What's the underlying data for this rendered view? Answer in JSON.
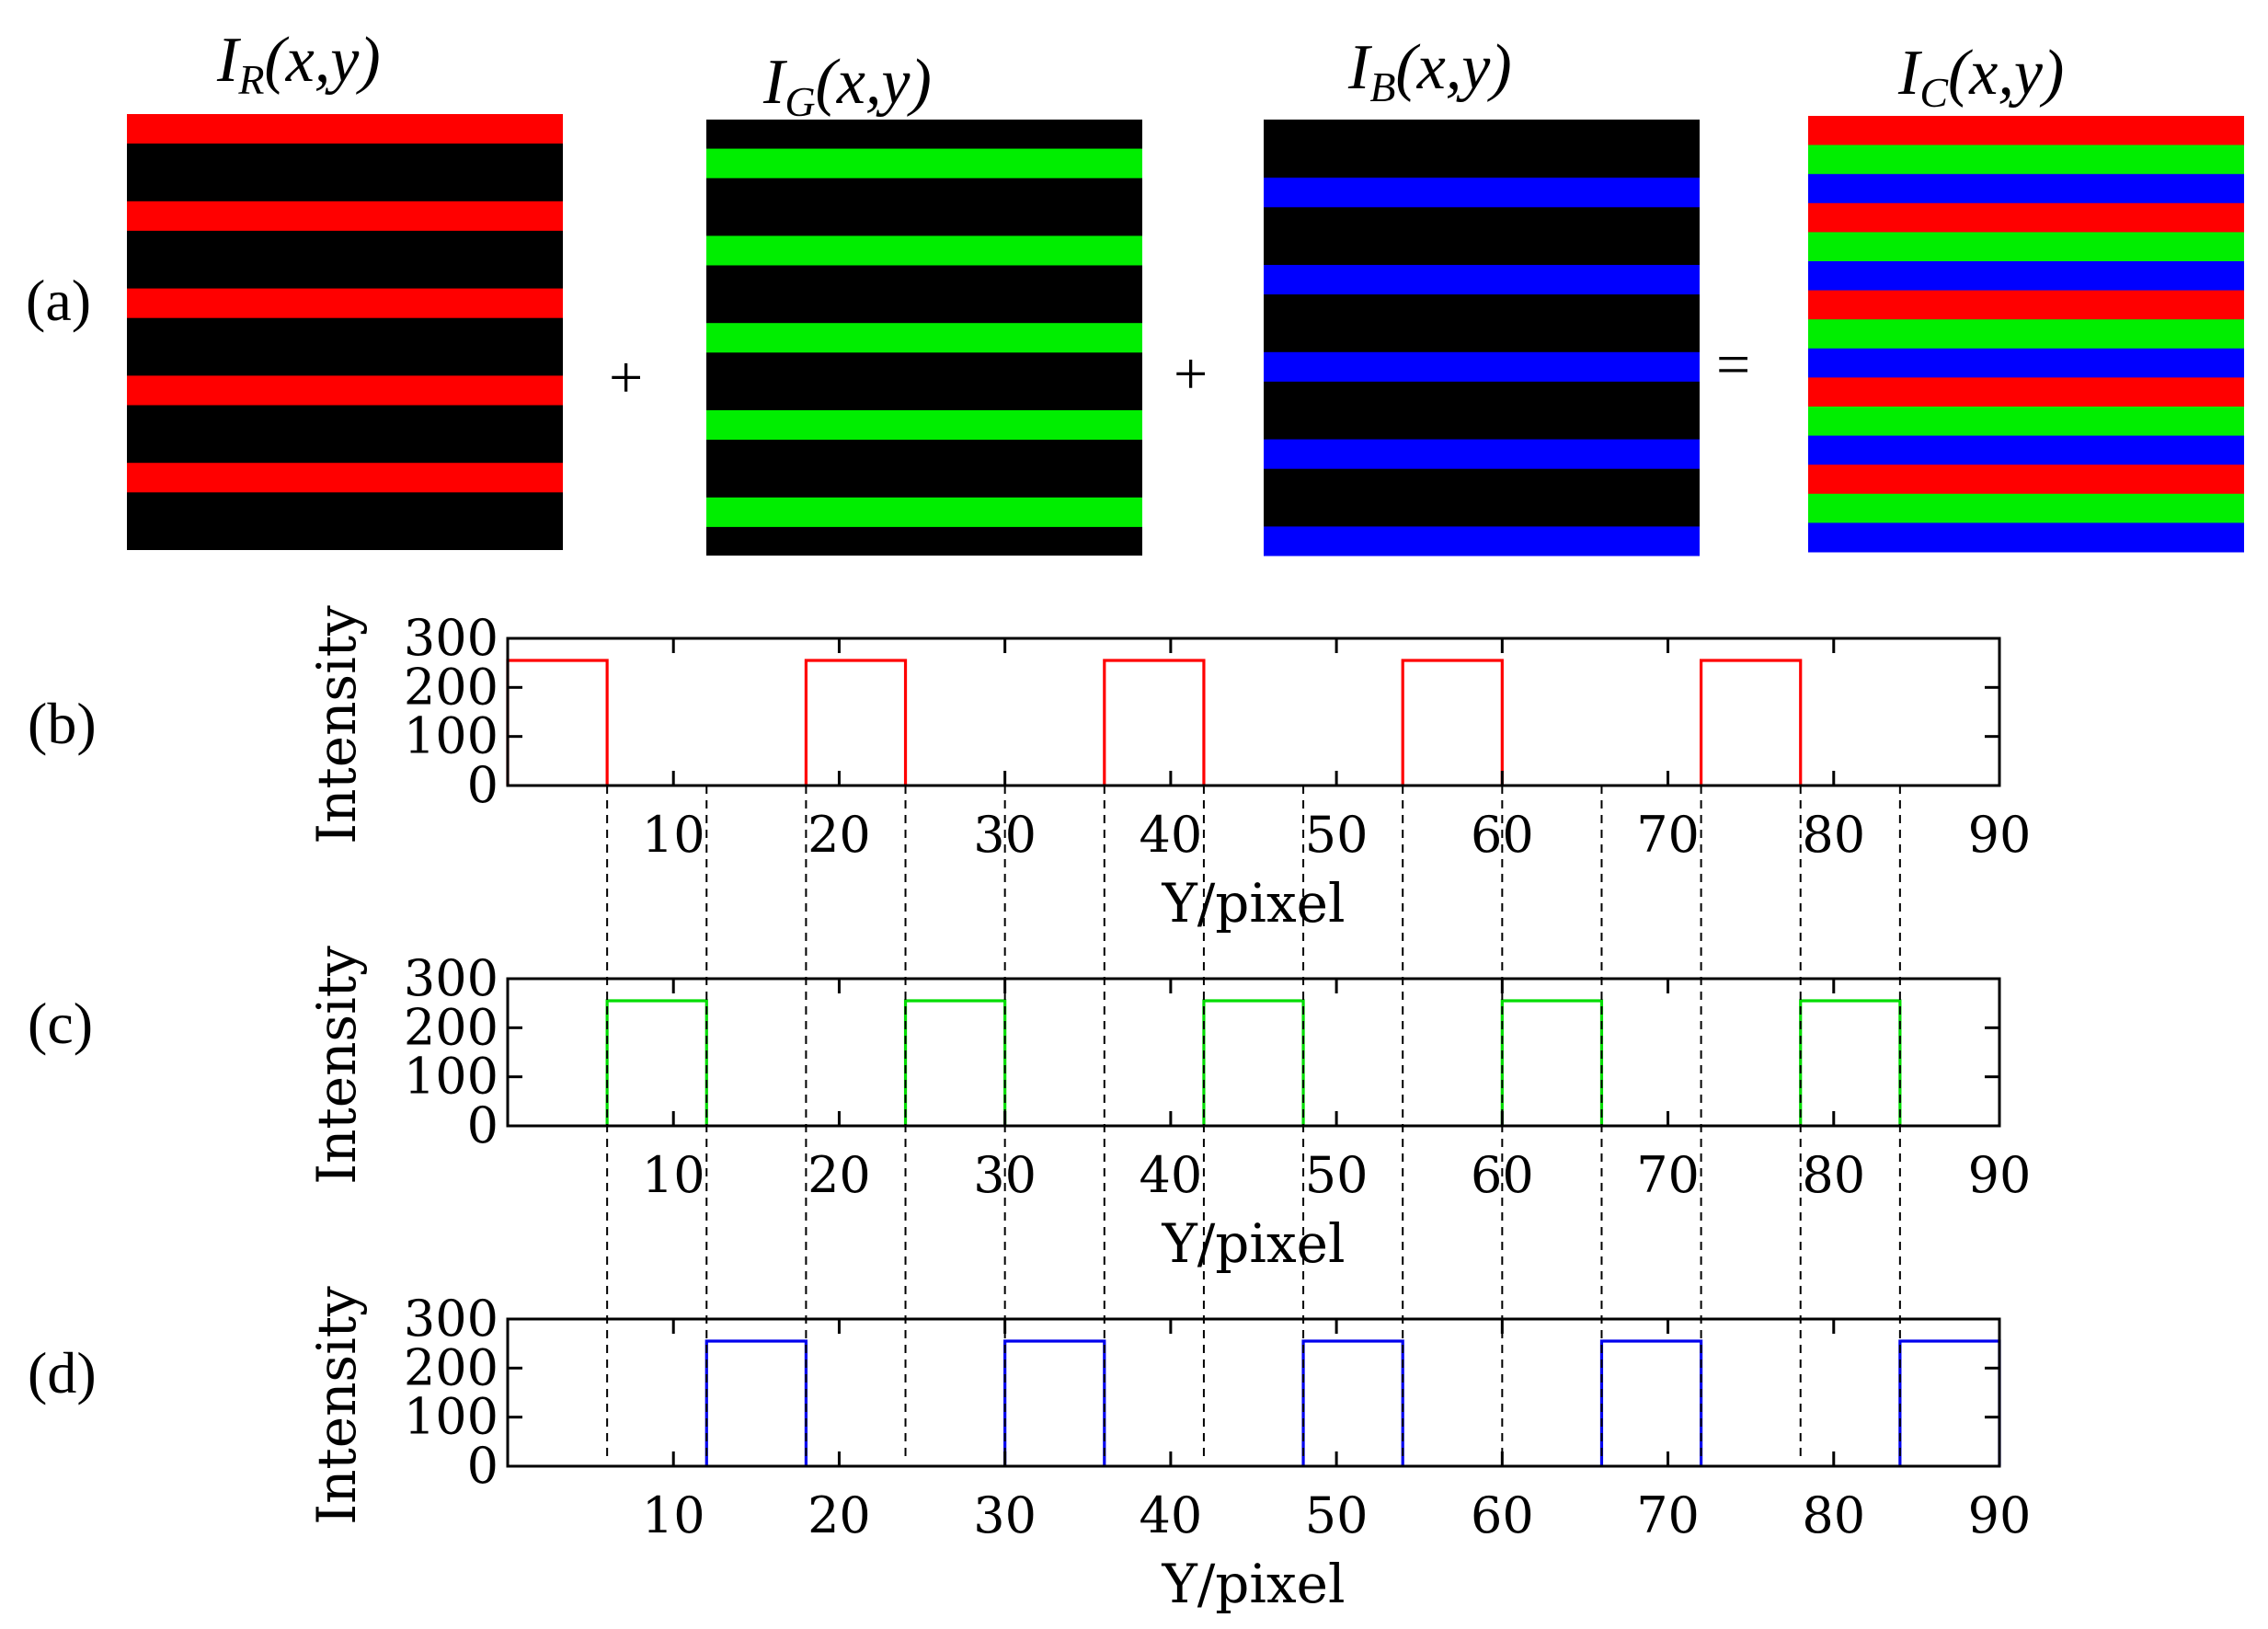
{
  "panel_labels": [
    "(a)",
    "(b)",
    "(c)",
    "(d)"
  ],
  "operators": {
    "plus": "+",
    "equals": "="
  },
  "images": [
    {
      "symbol": "I",
      "subscript": "R",
      "args": "(x,y)",
      "stripes": [
        "red"
      ]
    },
    {
      "symbol": "I",
      "subscript": "G",
      "args": "(x,y)",
      "stripes": [
        "green"
      ]
    },
    {
      "symbol": "I",
      "subscript": "B",
      "args": "(x,y)",
      "stripes": [
        "blue"
      ]
    },
    {
      "symbol": "I",
      "subscript": "C",
      "args": "(x,y)",
      "stripes": [
        "red",
        "green",
        "blue"
      ]
    }
  ],
  "colors": {
    "red": "#ff0000",
    "green": "#00ee00",
    "blue": "#0000ff",
    "black": "#000000",
    "line_red": "#ff0000",
    "line_green": "#00dd00",
    "line_blue": "#0000ee",
    "axis": "#000000"
  },
  "chart_data": [
    {
      "type": "line",
      "panel": "(b)",
      "series": [
        {
          "name": "red channel",
          "color": "line_red",
          "pulses": [
            [
              0,
              6
            ],
            [
              18,
              24
            ],
            [
              36,
              42
            ],
            [
              54,
              60
            ],
            [
              72,
              78
            ]
          ],
          "high": 255
        }
      ],
      "xlim": [
        0,
        90
      ],
      "ylim": [
        0,
        300
      ],
      "xticks": [
        10,
        20,
        30,
        40,
        50,
        60,
        70,
        80,
        90
      ],
      "yticks": [
        0,
        100,
        200,
        300
      ],
      "xlabel": "Y/pixel",
      "ylabel": "Intensity"
    },
    {
      "type": "line",
      "panel": "(c)",
      "series": [
        {
          "name": "green channel",
          "color": "line_green",
          "pulses": [
            [
              6,
              12
            ],
            [
              24,
              30
            ],
            [
              42,
              48
            ],
            [
              60,
              66
            ],
            [
              78,
              84
            ]
          ],
          "high": 255
        }
      ],
      "xlim": [
        0,
        90
      ],
      "ylim": [
        0,
        300
      ],
      "xticks": [
        10,
        20,
        30,
        40,
        50,
        60,
        70,
        80,
        90
      ],
      "yticks": [
        0,
        100,
        200,
        300
      ],
      "xlabel": "Y/pixel",
      "ylabel": "Intensity"
    },
    {
      "type": "line",
      "panel": "(d)",
      "series": [
        {
          "name": "blue channel",
          "color": "line_blue",
          "pulses": [
            [
              12,
              18
            ],
            [
              30,
              36
            ],
            [
              48,
              54
            ],
            [
              66,
              72
            ],
            [
              84,
              90
            ]
          ],
          "high": 255
        }
      ],
      "xlim": [
        0,
        90
      ],
      "ylim": [
        0,
        300
      ],
      "xticks": [
        10,
        20,
        30,
        40,
        50,
        60,
        70,
        80,
        90
      ],
      "yticks": [
        0,
        100,
        200,
        300
      ],
      "xlabel": "Y/pixel",
      "ylabel": "Intensity"
    }
  ],
  "guide_lines": [
    6,
    12,
    18,
    24,
    30,
    36,
    42,
    48,
    54,
    60,
    66,
    72,
    78,
    84
  ]
}
